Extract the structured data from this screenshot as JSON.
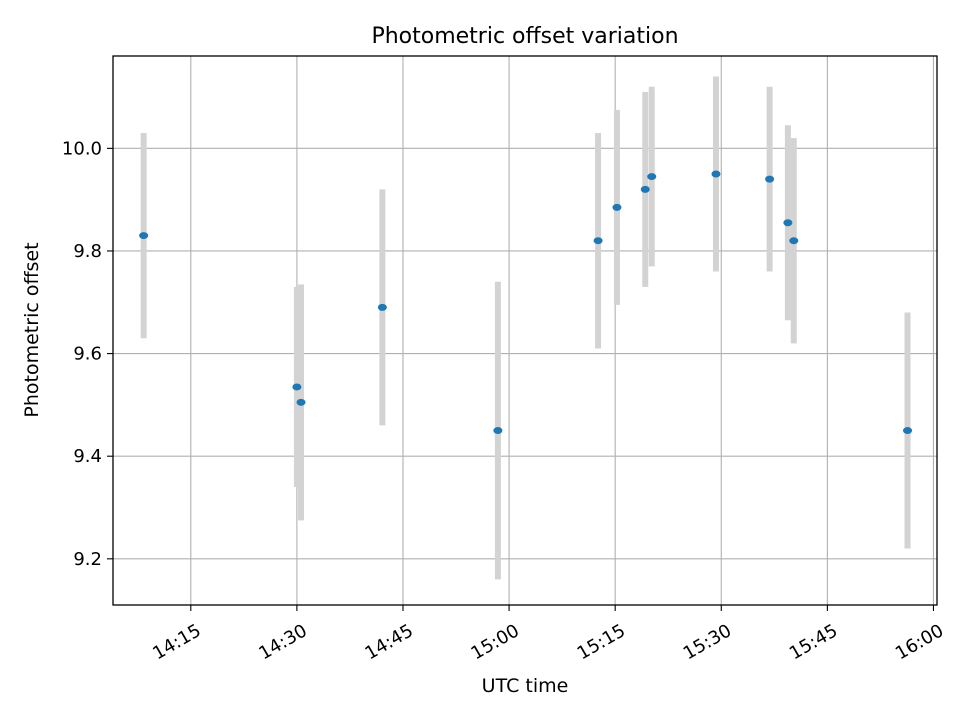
{
  "chart_data": {
    "type": "scatter",
    "title": "Photometric offset variation",
    "xlabel": "UTC time",
    "ylabel": "Photometric offset",
    "x_ticks": [
      "14:15",
      "14:30",
      "14:45",
      "15:00",
      "15:15",
      "15:30",
      "15:45",
      "16:00"
    ],
    "y_ticks": [
      "9.2",
      "9.4",
      "9.6",
      "9.8",
      "10.0"
    ],
    "xlim": [
      "14:04",
      "16:00:30"
    ],
    "ylim": [
      9.11,
      10.18
    ],
    "grid": true,
    "error_bars": true,
    "series": [
      {
        "x": [
          "14:08:20",
          "14:30:00",
          "14:30:35",
          "14:42:05",
          "14:58:25",
          "15:12:35",
          "15:15:15",
          "15:19:15",
          "15:20:10",
          "15:29:15",
          "15:36:50",
          "15:39:25",
          "15:40:15",
          "15:56:20"
        ],
        "y": [
          9.83,
          9.535,
          9.505,
          9.69,
          9.45,
          9.82,
          9.885,
          9.92,
          9.945,
          9.95,
          9.94,
          9.855,
          9.82,
          9.45
        ],
        "error": [
          0.2,
          0.195,
          0.23,
          0.23,
          0.29,
          0.21,
          0.19,
          0.19,
          0.175,
          0.19,
          0.18,
          0.19,
          0.2,
          0.23
        ]
      }
    ],
    "colors": {
      "marker": "#1f77b4",
      "error_bar": "#d3d3d3",
      "grid": "#b0b0b0"
    }
  }
}
